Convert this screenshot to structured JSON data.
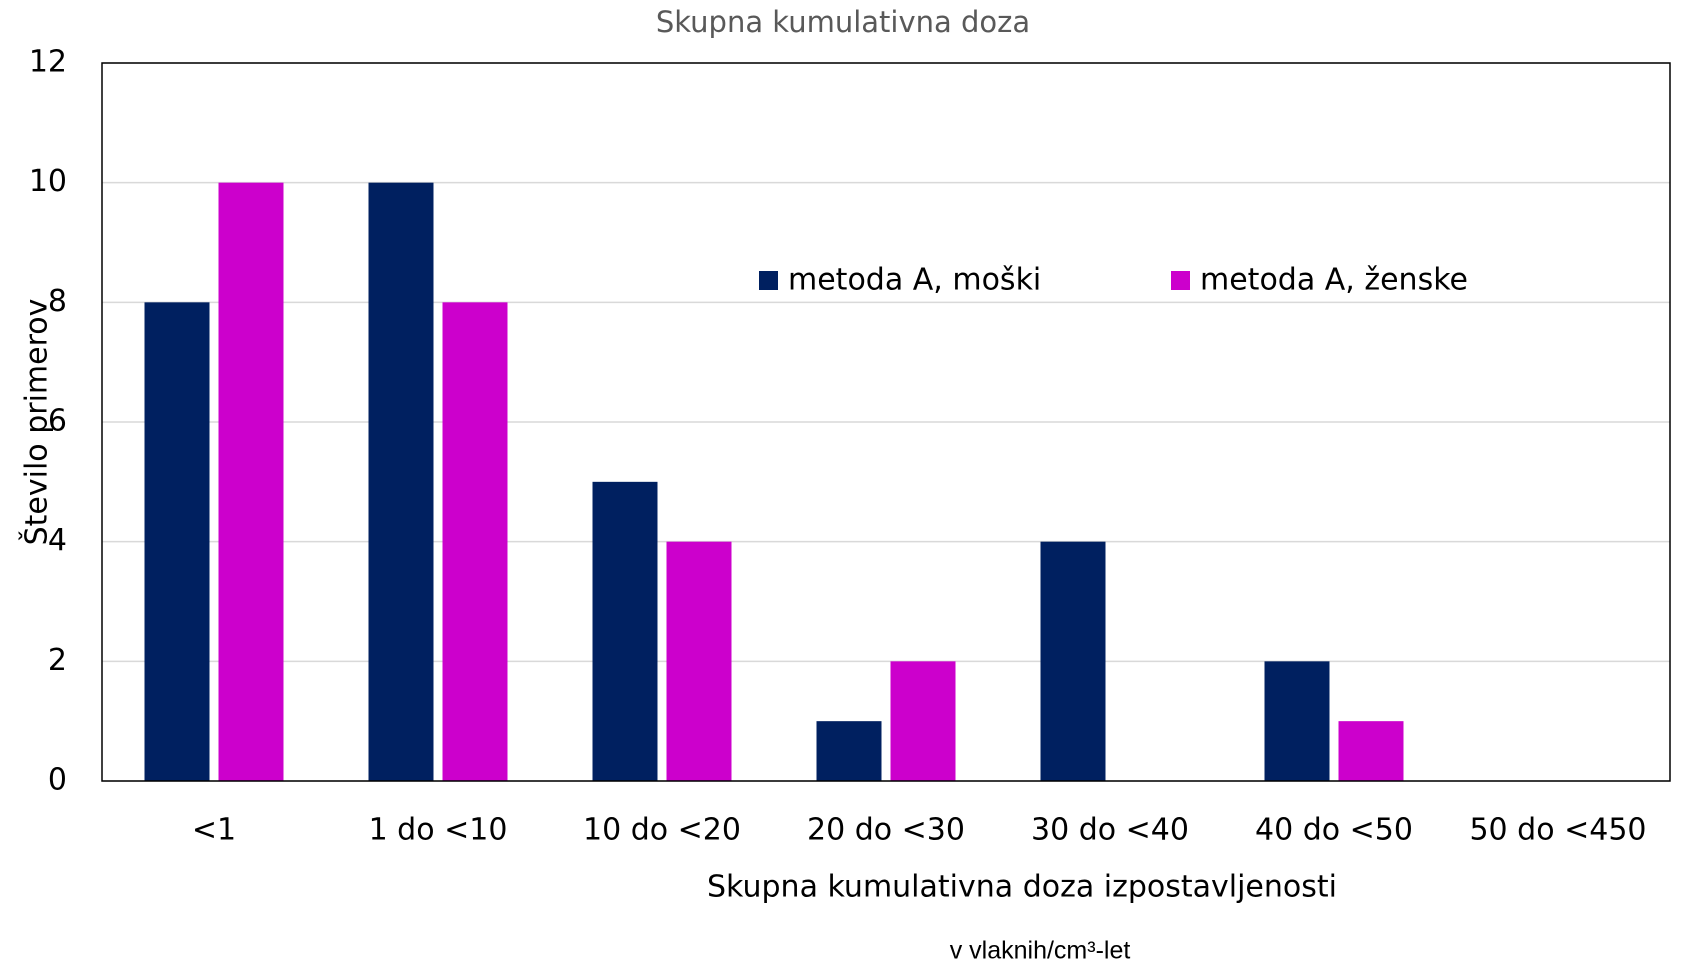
{
  "chart_data": {
    "type": "bar",
    "title": "Skupna kumulativna doza",
    "x_label": "Skupna kumulativna doza izpostavljenosti",
    "x_unit": "v vlaknih/cm³-let",
    "y_label": "Število primerov",
    "categories": [
      "<1",
      "1 do <10",
      "10 do <20",
      "20 do <30",
      "30 do <40",
      "40 do <50",
      "50 do <450"
    ],
    "series": [
      {
        "name": "metoda A, moški",
        "color": "#002060",
        "values": [
          8,
          10,
          5,
          1,
          4,
          2,
          0
        ]
      },
      {
        "name": "metoda A, ženske",
        "color": "#cc00cc",
        "values": [
          10,
          8,
          4,
          2,
          0,
          1,
          0
        ]
      }
    ],
    "ylim": [
      0,
      12
    ],
    "yticks": [
      0,
      2,
      4,
      6,
      8,
      10,
      12
    ],
    "grid": true,
    "legend": "top"
  }
}
